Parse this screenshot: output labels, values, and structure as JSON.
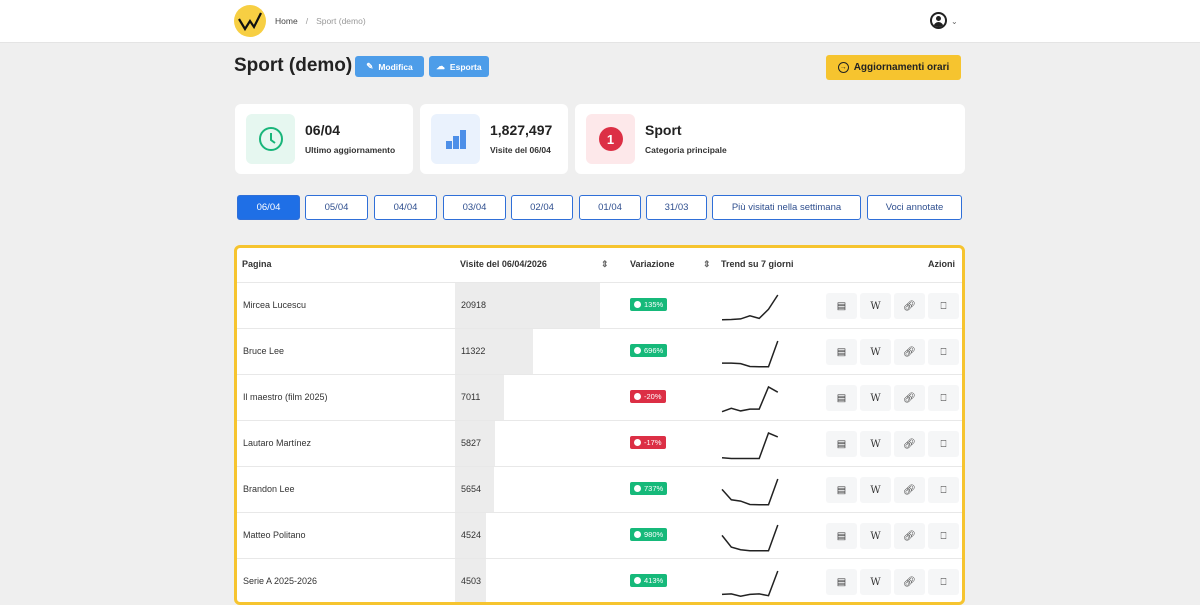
{
  "breadcrumb": {
    "home": "Home",
    "current": "Sport (demo)"
  },
  "page": {
    "title": "Sport (demo)",
    "edit_label": "Modifica",
    "export_label": "Esporta",
    "hourly_label": "Aggiornamenti orari"
  },
  "stats": [
    {
      "value": "06/04",
      "label": "Ultimo aggiornamento",
      "icon": "clock-icon"
    },
    {
      "value": "1,827,497",
      "label": "Visite del 06/04",
      "icon": "bar-chart-icon"
    },
    {
      "value": "Sport",
      "label": "Categoria principale",
      "icon": "number-one-icon"
    }
  ],
  "tabs": [
    "06/04",
    "05/04",
    "04/04",
    "03/04",
    "02/04",
    "01/04",
    "31/03",
    "Più visitati nella settimana",
    "Voci annotate"
  ],
  "active_tab": "06/04",
  "table": {
    "headers": {
      "page": "Pagina",
      "visits": "Visite del 06/04/2026",
      "change": "Variazione",
      "trend": "Trend su 7 giorni",
      "actions": "Azioni"
    },
    "rows": [
      {
        "page": "Mircea Lucescu",
        "visits": 20918,
        "change": "135%",
        "up": true,
        "trend": [
          0.05,
          0.06,
          0.08,
          0.2,
          0.1,
          0.45,
          1
        ]
      },
      {
        "page": "Bruce Lee",
        "visits": 11322,
        "change": "696%",
        "up": true,
        "trend": [
          0.15,
          0.15,
          0.13,
          0.02,
          0.01,
          0.01,
          1
        ]
      },
      {
        "page": "Il maestro (film 2025)",
        "visits": 7011,
        "change": "-20%",
        "up": false,
        "trend": [
          0.05,
          0.18,
          0.08,
          0.15,
          0.15,
          1,
          0.8
        ]
      },
      {
        "page": "Lautaro Martínez",
        "visits": 5827,
        "change": "-17%",
        "up": false,
        "trend": [
          0.05,
          0.02,
          0.02,
          0.02,
          0.02,
          1,
          0.85
        ]
      },
      {
        "page": "Brandon Lee",
        "visits": 5654,
        "change": "737%",
        "up": true,
        "trend": [
          0.6,
          0.2,
          0.15,
          0.02,
          0.01,
          0.01,
          1
        ]
      },
      {
        "page": "Matteo Politano",
        "visits": 4524,
        "change": "980%",
        "up": true,
        "trend": [
          0.6,
          0.15,
          0.05,
          0.01,
          0.01,
          0.01,
          1
        ]
      },
      {
        "page": "Serie A 2025-2026",
        "visits": 4503,
        "change": "413%",
        "up": true,
        "trend": [
          0.1,
          0.12,
          0.03,
          0.1,
          0.12,
          0.05,
          1
        ]
      }
    ]
  },
  "colors": {
    "up": "#16b97a",
    "down": "#dc2f45",
    "accent": "#f6c42f",
    "primary": "#1f6fe6"
  }
}
